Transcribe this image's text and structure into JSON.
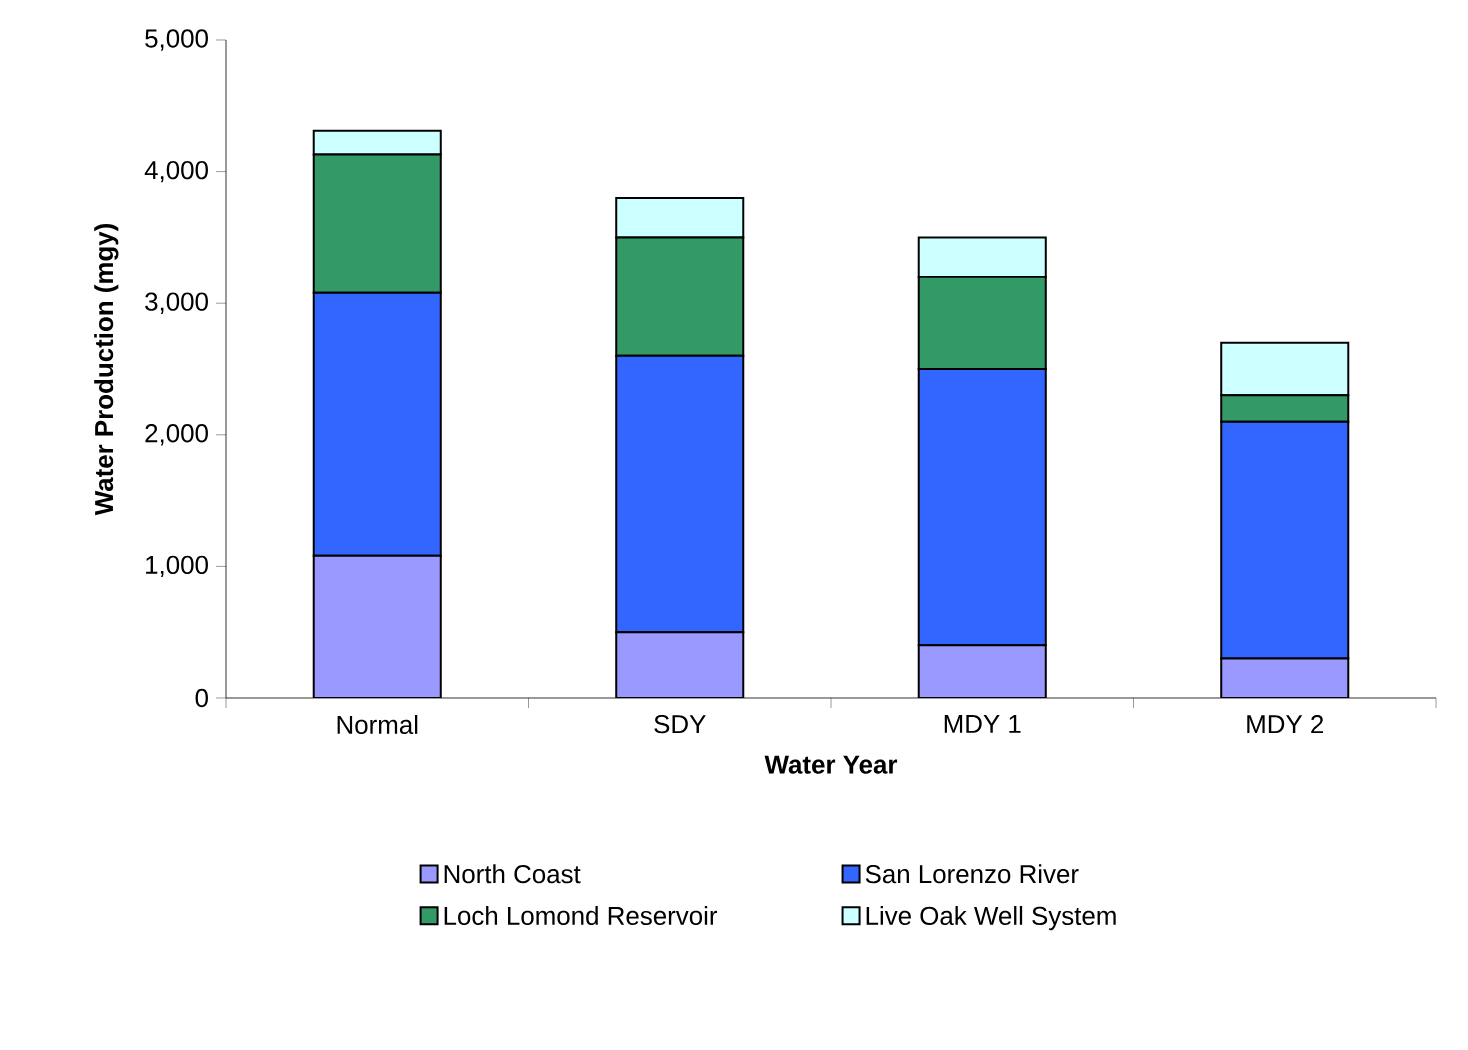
{
  "chart_data": {
    "type": "bar",
    "stacked": true,
    "xlabel": "Water Year",
    "ylabel": "Water Production (mgy)",
    "categories": [
      "Normal",
      "SDY",
      "MDY 1",
      "MDY 2"
    ],
    "series": [
      {
        "name": "North Coast",
        "color": "#9999ff",
        "values": [
          1080,
          500,
          400,
          300
        ]
      },
      {
        "name": "San Lorenzo River",
        "color": "#3366ff",
        "values": [
          2000,
          2100,
          2100,
          1800
        ]
      },
      {
        "name": "Loch Lomond Reservoir",
        "color": "#339966",
        "values": [
          1050,
          900,
          700,
          200
        ]
      },
      {
        "name": "Live Oak Well System",
        "color": "#ccffff",
        "values": [
          180,
          300,
          300,
          400
        ]
      }
    ],
    "ylim": [
      0,
      5000
    ],
    "yticks": [
      0,
      {
        "value": 1000,
        "label": "1,000"
      },
      {
        "value": 2000,
        "label": "2,000"
      },
      {
        "value": 3000,
        "label": "3,000"
      },
      {
        "value": 4000,
        "label": "4,000"
      },
      {
        "value": 5000,
        "label": "5,000"
      }
    ],
    "legend": "bottom"
  }
}
